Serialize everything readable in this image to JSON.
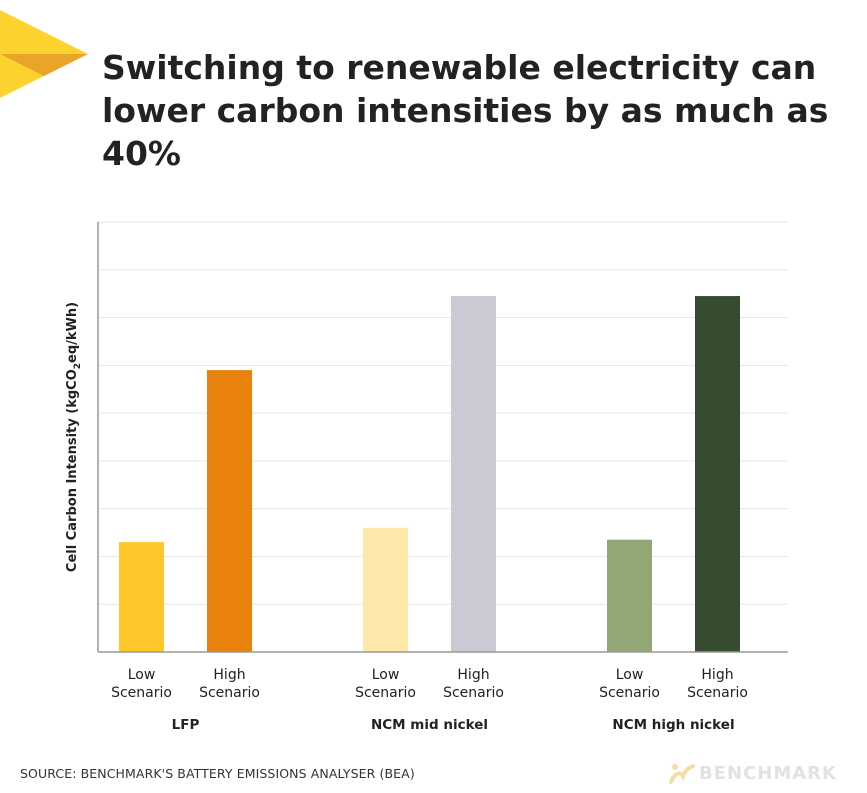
{
  "title": "Switching to renewable electricity can lower carbon intensities by as much as 40%",
  "source": "SOURCE: BENCHMARK'S BATTERY EMISSIONS ANALYSER (BEA)",
  "brand": "BENCHMARK",
  "colors": {
    "accent_yellow": "#FBD22E",
    "accent_orange": "#E9A42A",
    "grid": "#E6E6E6",
    "axis": "#999999"
  },
  "chart_data": {
    "type": "bar",
    "title": "",
    "ylabel": "Cell Carbon Intensity (kgCO2eq/kWh)",
    "ylabel_parts": {
      "before": "Cell Carbon Intensity (kgCO",
      "sub": "2",
      "after": "eq/kWh)"
    },
    "ylim": [
      0,
      9
    ],
    "grid": true,
    "gridlines": 9,
    "groups": [
      {
        "name": "LFP",
        "bars": [
          {
            "label1": "Low",
            "label2": "Scenario",
            "value": 2.3,
            "color": "#FFC72C"
          },
          {
            "label1": "High",
            "label2": "Scenario",
            "value": 5.9,
            "color": "#E8820C"
          }
        ]
      },
      {
        "name": "NCM mid nickel",
        "bars": [
          {
            "label1": "Low",
            "label2": "Scenario",
            "value": 2.6,
            "color": "#FDE8A9"
          },
          {
            "label1": "High",
            "label2": "Scenario",
            "value": 7.45,
            "color": "#C9CAD3"
          }
        ]
      },
      {
        "name": "NCM high nickel",
        "bars": [
          {
            "label1": "Low",
            "label2": "Scenario",
            "value": 2.35,
            "color": "#93A776"
          },
          {
            "label1": "High",
            "label2": "Scenario",
            "value": 7.45,
            "color": "#374B31"
          }
        ]
      }
    ]
  }
}
